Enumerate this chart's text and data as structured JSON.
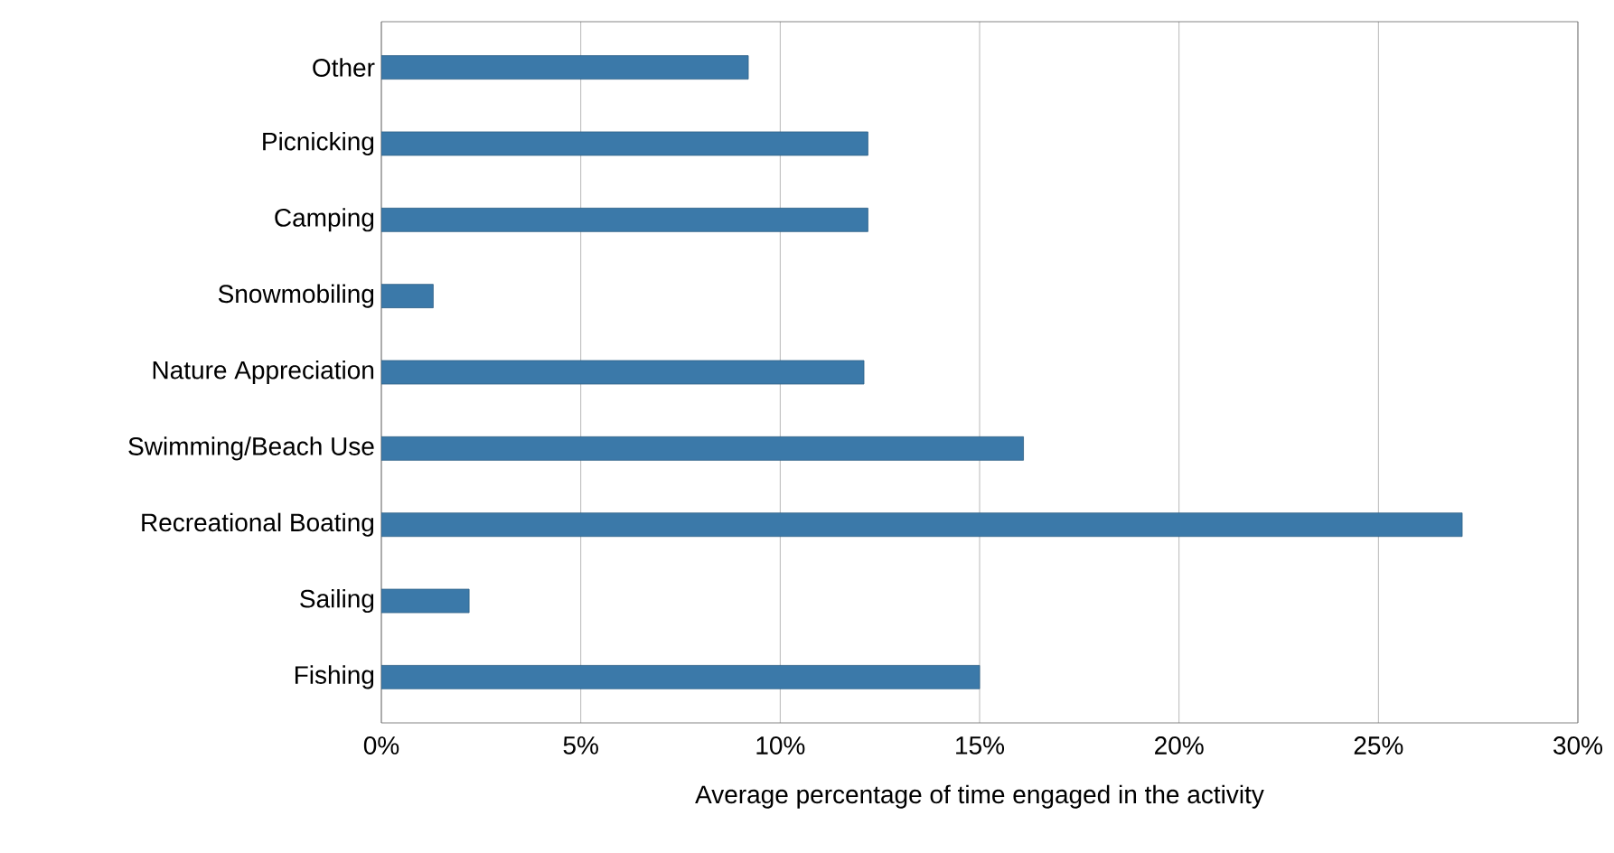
{
  "chart_data": {
    "type": "bar",
    "orientation": "horizontal",
    "xlabel": "Average percentage of time engaged in the activity",
    "categories": [
      "Other",
      "Picnicking",
      "Camping",
      "Snowmobiling",
      "Nature Appreciation",
      "Swimming/Beach Use",
      "Recreational Boating",
      "Sailing",
      "Fishing"
    ],
    "values": [
      9.2,
      12.2,
      12.2,
      1.3,
      12.1,
      16.1,
      27.1,
      2.2,
      15.0
    ],
    "color": "#3b79a9",
    "xlim": [
      0,
      30
    ],
    "xticks": [
      {
        "value": 0,
        "label": "0%"
      },
      {
        "value": 5,
        "label": "5%"
      },
      {
        "value": 10,
        "label": "10%"
      },
      {
        "value": 15,
        "label": "15%"
      },
      {
        "value": 20,
        "label": "20%"
      },
      {
        "value": 25,
        "label": "25%"
      },
      {
        "value": 30,
        "label": "30%"
      }
    ],
    "grid": "x"
  }
}
